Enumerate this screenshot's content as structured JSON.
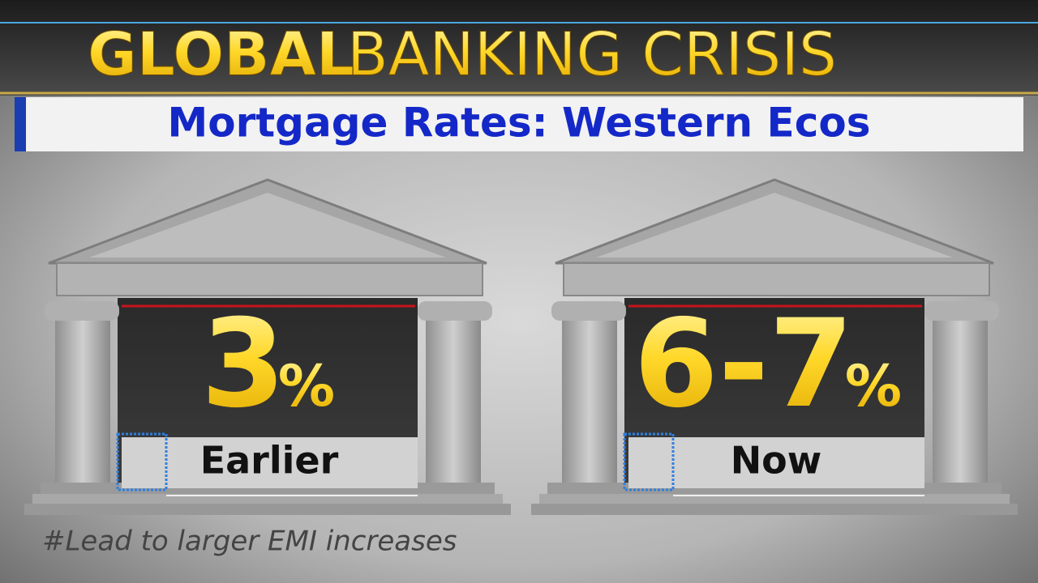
{
  "header": {
    "title_bold": "GLOBAL",
    "title": "BANKING CRISIS",
    "subtitle": "Mortgage Rates: Western Ecos"
  },
  "panels": [
    {
      "value": "3",
      "unit": "%",
      "label": "Earlier"
    },
    {
      "value": "6-7",
      "unit": "%",
      "label": "Now"
    }
  ],
  "footer": {
    "note": "#Lead to larger EMI increases"
  }
}
